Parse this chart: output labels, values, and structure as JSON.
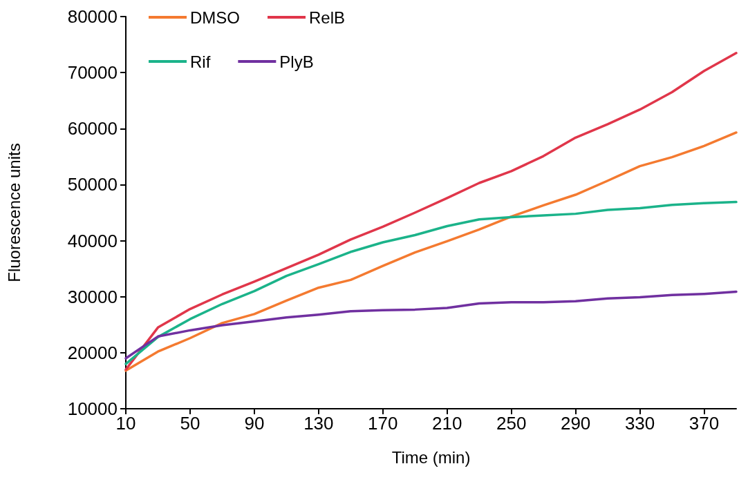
{
  "chart_data": {
    "type": "line",
    "xlabel": "Time (min)",
    "ylabel": "Fluorescence units",
    "categories": [
      "10",
      null,
      "50",
      null,
      "90",
      null,
      "130",
      null,
      "170",
      null,
      "210",
      null,
      "250",
      null,
      "290",
      null,
      "330",
      null,
      "370",
      null
    ],
    "series": [
      {
        "name": "DMSO",
        "color": "#f47a30",
        "values": [
          16800,
          20200,
          22600,
          25300,
          26900,
          29300,
          31600,
          33000,
          35500,
          37900,
          39900,
          42000,
          44300,
          46300,
          48200,
          50700,
          53300,
          54900,
          56900,
          59300
        ]
      },
      {
        "name": "RelB",
        "color": "#e0364a",
        "values": [
          17000,
          24500,
          27800,
          30400,
          32700,
          35100,
          37500,
          40200,
          42500,
          45000,
          47600,
          50300,
          52400,
          55100,
          58400,
          60800,
          63400,
          66500,
          70300,
          73500
        ]
      },
      {
        "name": "Rif",
        "color": "#1bb38a",
        "values": [
          18000,
          22800,
          26000,
          28700,
          31000,
          33700,
          35800,
          38000,
          39700,
          41000,
          42600,
          43800,
          44200,
          44500,
          44800,
          45500,
          45800,
          46400,
          46700,
          46900
        ]
      },
      {
        "name": "PlyB",
        "color": "#7030a0",
        "values": [
          19000,
          22900,
          24000,
          24900,
          25600,
          26300,
          26800,
          27400,
          27600,
          27700,
          28000,
          28800,
          29000,
          29000,
          29200,
          29700,
          29900,
          30300,
          30500,
          30900
        ]
      }
    ],
    "ylim": [
      10000,
      80000
    ],
    "yticks": [
      10000,
      20000,
      30000,
      40000,
      50000,
      60000,
      70000,
      80000
    ],
    "grid": false,
    "legend": "top left",
    "marker": "none",
    "line_style": "solid"
  }
}
